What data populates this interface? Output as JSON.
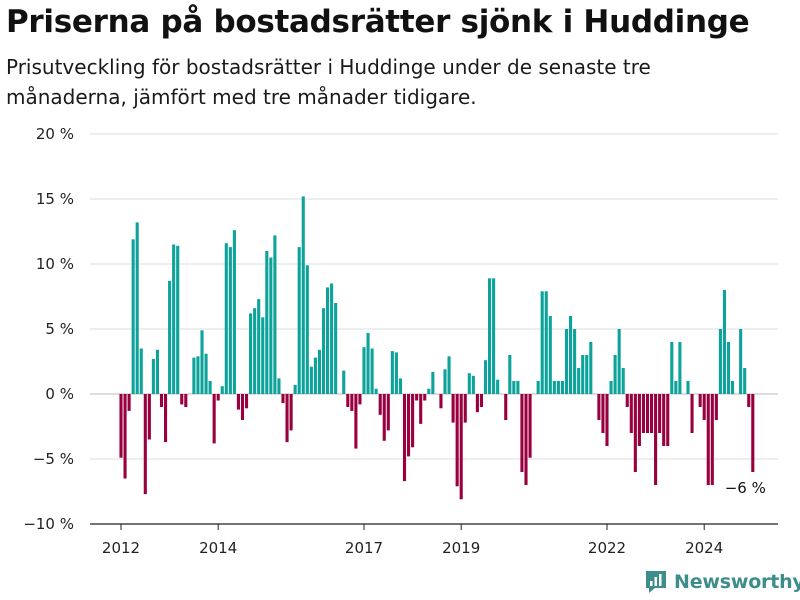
{
  "title": "Priserna på bostadsrätter sjönk i Huddinge",
  "subtitle": "Prisutveckling för bostadsrätter i Huddinge under de senaste tre månaderna, jämfört med tre månader tidigare.",
  "brand": "Newsworthy",
  "colors": {
    "positive": "#0da39a",
    "negative": "#99003f",
    "grid": "#dddddd",
    "brand": "#3d8e8a"
  },
  "chart_data": {
    "type": "bar",
    "ylim": [
      -10,
      20
    ],
    "y_ticks": [
      {
        "value": 20,
        "label": "20 %"
      },
      {
        "value": 15,
        "label": "15 %"
      },
      {
        "value": 10,
        "label": "10 %"
      },
      {
        "value": 5,
        "label": "5 %"
      },
      {
        "value": 0,
        "label": "0 %"
      },
      {
        "value": -5,
        "label": "−5 %"
      },
      {
        "value": -10,
        "label": "−10 %"
      }
    ],
    "x_ticks": [
      {
        "index": 0,
        "label": "2012"
      },
      {
        "index": 24,
        "label": "2014"
      },
      {
        "index": 60,
        "label": "2017"
      },
      {
        "index": 84,
        "label": "2019"
      },
      {
        "index": 120,
        "label": "2022"
      },
      {
        "index": 144,
        "label": "2024"
      }
    ],
    "annotation": {
      "index": 154,
      "label": "−6 %"
    },
    "values": [
      -4.9,
      -6.5,
      -1.3,
      11.9,
      13.2,
      3.5,
      -7.7,
      -3.5,
      2.7,
      3.4,
      -1.0,
      -3.7,
      8.7,
      11.5,
      11.4,
      -0.8,
      -1.0,
      0,
      2.8,
      2.9,
      4.9,
      3.1,
      1.0,
      -3.8,
      -0.5,
      0.6,
      11.6,
      11.3,
      12.6,
      -1.2,
      -2.0,
      -1.1,
      6.2,
      6.6,
      7.3,
      5.9,
      11.0,
      10.5,
      12.2,
      1.2,
      -0.7,
      -3.7,
      -2.8,
      0.7,
      11.3,
      15.2,
      9.9,
      2.1,
      2.8,
      3.4,
      6.6,
      8.2,
      8.5,
      7.0,
      0,
      1.8,
      -1.0,
      -1.3,
      -4.2,
      -0.8,
      3.6,
      4.7,
      3.5,
      0.4,
      -1.6,
      -3.6,
      -2.8,
      3.3,
      3.2,
      1.2,
      -6.7,
      -4.8,
      -4.1,
      -0.5,
      -2.3,
      -0.5,
      0.4,
      1.7,
      0,
      -1.1,
      1.9,
      2.9,
      -2.2,
      -7.1,
      -8.1,
      -2.2,
      1.6,
      1.4,
      -1.4,
      -1.0,
      2.6,
      8.9,
      8.9,
      1.1,
      0,
      -2.0,
      3.0,
      1.0,
      1.0,
      -6.0,
      -7.0,
      -4.9,
      0,
      1.0,
      7.9,
      7.9,
      6.0,
      1.0,
      1.0,
      1.0,
      5.0,
      6.0,
      5.0,
      2.0,
      3.0,
      3.0,
      4.0,
      0,
      -2.0,
      -3.0,
      -4.0,
      1.0,
      3.0,
      5.0,
      2.0,
      -1.0,
      -3.0,
      -6.0,
      -4.0,
      -3.0,
      -3.0,
      -3.0,
      -7.0,
      -3.0,
      -4.0,
      -4.0,
      4.0,
      1.0,
      4.0,
      0,
      1.0,
      -3.0,
      0,
      -1.0,
      -2.0,
      -7.0,
      -7.0,
      -2.0,
      5.0,
      8.0,
      4.0,
      1.0,
      0,
      5.0,
      2.0,
      -1.0,
      -6.0
    ]
  }
}
